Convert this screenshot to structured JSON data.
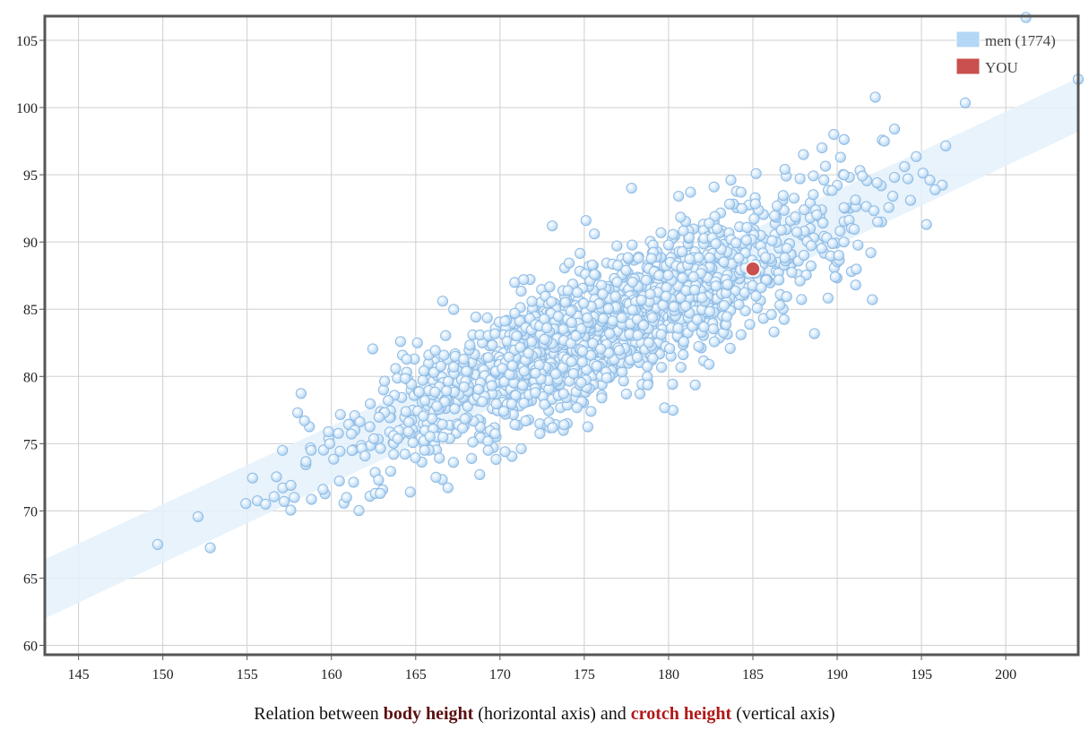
{
  "chart_data": {
    "type": "scatter",
    "xlim": [
      143,
      204.3
    ],
    "ylim": [
      59.3,
      106.8
    ],
    "x_ticks": [
      145,
      150,
      155,
      160,
      165,
      170,
      175,
      180,
      185,
      190,
      195,
      200
    ],
    "y_ticks": [
      60,
      65,
      70,
      75,
      80,
      85,
      90,
      95,
      100,
      105
    ],
    "grid": true,
    "legend_position": "top-right",
    "band": {
      "upper": [
        [
          143,
          66.4
        ],
        [
          204.3,
          102.2
        ]
      ],
      "lower": [
        [
          143,
          62.0
        ],
        [
          204.3,
          98.2
        ]
      ],
      "color": "#e4f1fc"
    },
    "series": [
      {
        "name": "men (1774)",
        "color": "#b3d7f5",
        "cluster": {
          "count": 1774,
          "x_mean": 176,
          "y_mean": 83.5,
          "x_sd": 6.9,
          "y_sd": 4.6,
          "correlation": 0.86
        },
        "points": [
          [
            149.7,
            67.5
          ],
          [
            156.1,
            70.5
          ],
          [
            157.2,
            70.7
          ],
          [
            157.8,
            71.0
          ],
          [
            157.6,
            71.9
          ],
          [
            157.1,
            74.5
          ],
          [
            158.0,
            77.3
          ],
          [
            158.4,
            76.7
          ],
          [
            158.8,
            74.5
          ],
          [
            159.5,
            71.6
          ],
          [
            159.9,
            75.0
          ],
          [
            160.9,
            71.0
          ],
          [
            162.6,
            71.3
          ],
          [
            162.9,
            71.3
          ],
          [
            162.8,
            72.3
          ],
          [
            163.7,
            74.2
          ],
          [
            166.2,
            72.5
          ],
          [
            168.8,
            72.7
          ],
          [
            169.3,
            74.5
          ],
          [
            170.3,
            74.4
          ],
          [
            164.1,
            82.6
          ],
          [
            165.1,
            82.5
          ],
          [
            166.6,
            85.6
          ],
          [
            171.4,
            87.2
          ],
          [
            173.1,
            91.2
          ],
          [
            175.1,
            91.6
          ],
          [
            175.6,
            90.6
          ],
          [
            177.8,
            94.0
          ],
          [
            181.3,
            93.7
          ],
          [
            173.8,
            76.4
          ],
          [
            175.4,
            77.4
          ],
          [
            178.3,
            78.7
          ],
          [
            182.4,
            80.9
          ],
          [
            184.3,
            83.1
          ],
          [
            186.1,
            84.6
          ],
          [
            186.6,
            85.3
          ],
          [
            185.5,
            86.6
          ],
          [
            187.8,
            87.1
          ],
          [
            190.1,
            89.0
          ],
          [
            191.1,
            86.8
          ],
          [
            188.0,
            96.5
          ],
          [
            189.1,
            97.0
          ],
          [
            189.8,
            98.0
          ],
          [
            190.2,
            96.3
          ],
          [
            192.8,
            97.5
          ],
          [
            193.4,
            98.4
          ],
          [
            191.5,
            94.9
          ],
          [
            193.4,
            94.8
          ],
          [
            194.0,
            95.6
          ],
          [
            194.2,
            94.7
          ],
          [
            195.5,
            94.6
          ],
          [
            195.3,
            91.3
          ],
          [
            193.3,
            93.4
          ],
          [
            192.4,
            91.5
          ],
          [
            192.0,
            89.2
          ],
          [
            190.4,
            90.0
          ],
          [
            186.9,
            95.4
          ],
          [
            183.7,
            94.6
          ],
          [
            184.3,
            93.7
          ],
          [
            180.6,
            93.4
          ],
          [
            204.3,
            102.1
          ],
          [
            201.2,
            106.7
          ]
        ]
      },
      {
        "name": "YOU",
        "color": "#c9504e",
        "points": [
          [
            185.0,
            88.0
          ]
        ]
      }
    ],
    "caption": {
      "prefix": "Relation between ",
      "x_term": "body height",
      "middle": " (horizontal axis) and ",
      "y_term": "crotch height",
      "suffix": " (vertical axis)"
    }
  }
}
